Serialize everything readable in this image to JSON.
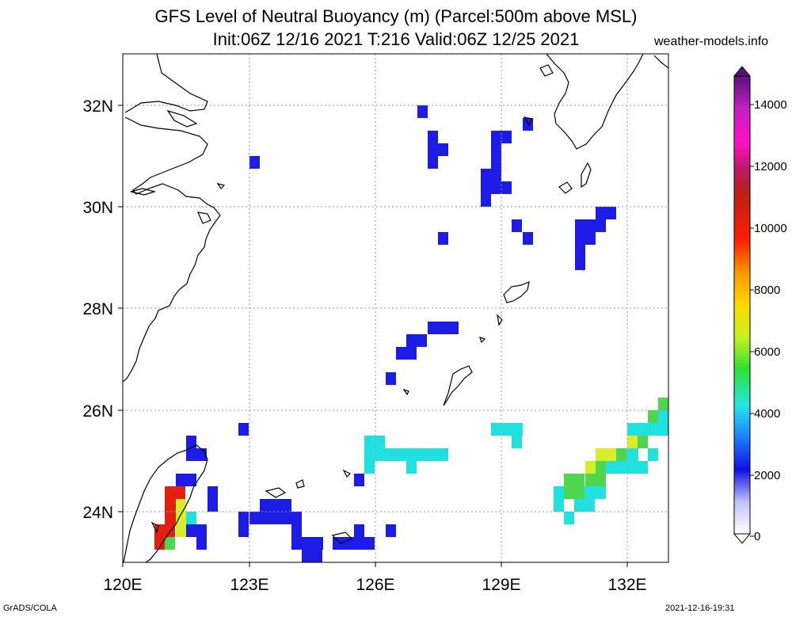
{
  "title": {
    "line1": "GFS Level of Neutral Buoyancy (m) (Parcel:500m above MSL)",
    "line2": "Init:06Z 12/16 2021 T:216 Valid:06Z 12/25 2021"
  },
  "credit": "weather-models.info",
  "footer": {
    "left": "GrADS/COLA",
    "right": "2021-12-16-19:31"
  },
  "map": {
    "x_ticks": [
      "120E",
      "123E",
      "126E",
      "129E",
      "132E"
    ],
    "y_ticks": [
      "32N",
      "30N",
      "28N",
      "26N",
      "24N"
    ],
    "lon_range": [
      120,
      133
    ],
    "lat_range": [
      23,
      33
    ],
    "colors": {
      "blue": "#1c1ce6",
      "cyan": "#21e0e0",
      "green": "#4ed64e",
      "yellow": "#d8ee2a",
      "red": "#e32010"
    }
  },
  "colorbar": {
    "labels": [
      "14000",
      "12000",
      "10000",
      "8000",
      "6000",
      "4000",
      "2000",
      "0"
    ],
    "range": [
      0,
      14000
    ]
  }
}
